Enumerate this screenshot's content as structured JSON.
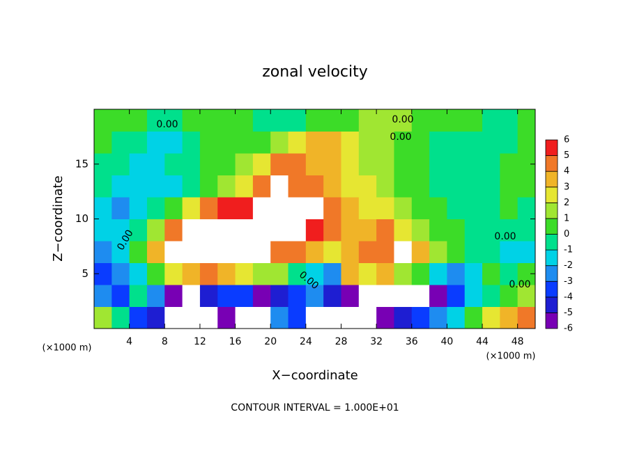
{
  "chart_data": {
    "type": "heatmap",
    "title": "zonal velocity",
    "x_label": "X−coordinate",
    "y_label": "Z−coordinate",
    "x_unit_label": "(×1000 m)",
    "x_unit_label_right": "(×1000 m)",
    "footer": "CONTOUR INTERVAL = 1.000E+01",
    "contour_labels": [
      "0.00",
      "0.00",
      "0.00",
      "0.00",
      "0.00",
      "0.00",
      "0.00"
    ],
    "xlim": [
      0,
      50
    ],
    "ylim": [
      0,
      20
    ],
    "xticks": [
      4,
      8,
      12,
      16,
      20,
      24,
      28,
      32,
      36,
      40,
      44,
      48
    ],
    "yticks": [
      5,
      10,
      15
    ],
    "x_bins": [
      0,
      2,
      4,
      6,
      8,
      10,
      12,
      14,
      16,
      18,
      20,
      22,
      24,
      26,
      28,
      30,
      32,
      34,
      36,
      38,
      40,
      42,
      44,
      46,
      48,
      50
    ],
    "z_bins": [
      0,
      2,
      4,
      6,
      8,
      10,
      12,
      14,
      16,
      18,
      20
    ],
    "values": [
      [
        2,
        0,
        -3,
        -4,
        -8,
        -8,
        -8,
        -5,
        -8,
        -8,
        -2,
        -3,
        -8,
        -8,
        -8,
        -8,
        -5,
        -4,
        -3,
        -2,
        -1,
        1,
        3,
        4,
        5
      ],
      [
        -2,
        -3,
        0,
        -2,
        -5,
        -8,
        -4,
        -3,
        -3,
        -5,
        -4,
        -3,
        -2,
        -4,
        -6,
        -8,
        -8,
        -8,
        -8,
        -5,
        -3,
        -1,
        0,
        1,
        2
      ],
      [
        -3,
        -2,
        -1,
        1,
        3,
        4,
        5,
        4,
        3,
        2,
        1.5,
        0,
        -1,
        -2,
        4,
        3,
        4,
        2,
        1,
        -1,
        -2,
        -1,
        1,
        0,
        1
      ],
      [
        -2,
        -1,
        1,
        4,
        7,
        7,
        7,
        7,
        7,
        7,
        5,
        4.5,
        4,
        3,
        4,
        5,
        5,
        7,
        4,
        2,
        1,
        0,
        -0.5,
        -1,
        -1
      ],
      [
        -1,
        -1.5,
        0,
        2,
        5,
        7,
        7,
        7,
        7,
        7,
        7,
        7,
        6,
        5,
        4,
        4,
        5,
        3,
        2,
        1,
        0.5,
        0,
        0,
        -0.5,
        -0.5
      ],
      [
        -1,
        -2,
        -1,
        -0.5,
        1,
        3,
        5,
        5.5,
        6,
        7,
        7,
        7,
        7,
        5,
        4,
        3,
        3,
        2,
        1,
        0.5,
        0,
        0,
        0,
        0.5,
        0
      ],
      [
        0,
        -1,
        -1,
        -1.5,
        -1,
        0,
        1,
        2,
        3,
        4.5,
        7,
        5,
        4.5,
        4,
        3,
        2.5,
        2,
        1,
        0.5,
        0,
        -0.5,
        -0.5,
        0,
        0.5,
        0.5
      ],
      [
        0,
        0,
        -1,
        -1,
        -0.5,
        0,
        0.5,
        1,
        1.5,
        3,
        4.5,
        5,
        4,
        3.5,
        3,
        2,
        1.5,
        1,
        0.5,
        0,
        -0.5,
        -0.5,
        0,
        0.5,
        0.5
      ],
      [
        0.5,
        0,
        0,
        -1,
        -1,
        0,
        0.5,
        0.5,
        0.5,
        1,
        2,
        3,
        3.5,
        3.5,
        3,
        2,
        1.5,
        1,
        0.5,
        0,
        0,
        -0.5,
        -0.5,
        0,
        0.5
      ],
      [
        0.5,
        0.5,
        0.5,
        0,
        0,
        0.5,
        0.5,
        0.5,
        0.5,
        0,
        0,
        0,
        0.5,
        0.5,
        1,
        1.5,
        1.5,
        1.5,
        1,
        0.5,
        0.5,
        0.5,
        0,
        0,
        0.5
      ]
    ],
    "colorbar_ticks": [
      -6,
      -5,
      -4,
      -3,
      -2,
      -1,
      0,
      1,
      2,
      3,
      4,
      5,
      6
    ],
    "colorbar_colors": [
      "#7800b4",
      "#1e1ed2",
      "#0a3cff",
      "#1e8cf0",
      "#00d2e6",
      "#00e08c",
      "#3cdc28",
      "#a0e632",
      "#e6e632",
      "#f0b428",
      "#f07828",
      "#f01e1e"
    ],
    "out_of_range_color": "#ffffff"
  }
}
